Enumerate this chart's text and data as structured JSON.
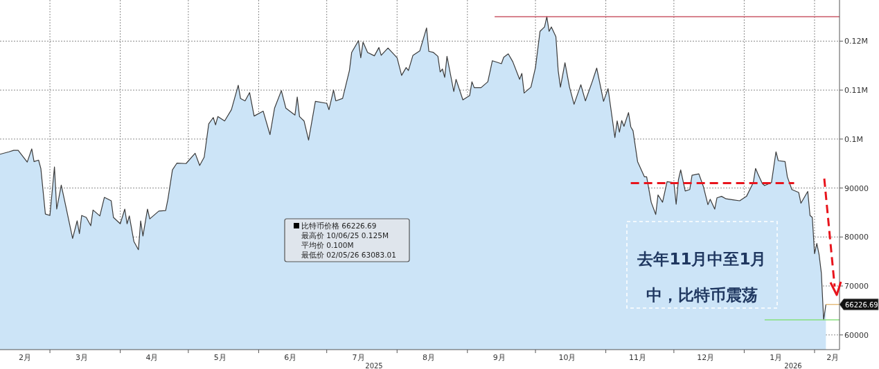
{
  "chart_data": {
    "type": "area",
    "x": [
      "2025-02-07",
      "2025-02-11",
      "2025-02-13",
      "2025-02-15",
      "2025-02-19",
      "2025-02-21",
      "2025-02-22",
      "2025-02-24",
      "2025-02-25",
      "2025-02-27",
      "2025-03-01",
      "2025-03-03",
      "2025-03-04",
      "2025-03-06",
      "2025-03-08",
      "2025-03-11",
      "2025-03-13",
      "2025-03-14",
      "2025-03-15",
      "2025-03-17",
      "2025-03-19",
      "2025-03-20",
      "2025-03-23",
      "2025-03-25",
      "2025-03-28",
      "2025-03-29",
      "2025-04-01",
      "2025-04-03",
      "2025-04-04",
      "2025-04-05",
      "2025-04-07",
      "2025-04-09",
      "2025-04-10",
      "2025-04-11",
      "2025-04-13",
      "2025-04-14",
      "2025-04-18",
      "2025-04-21",
      "2025-04-22",
      "2025-04-24",
      "2025-04-26",
      "2025-04-30",
      "2025-05-04",
      "2025-05-06",
      "2025-05-08",
      "2025-05-10",
      "2025-05-12",
      "2025-05-13",
      "2025-05-14",
      "2025-05-17",
      "2025-05-20",
      "2025-05-23",
      "2025-05-24",
      "2025-05-26",
      "2025-05-28",
      "2025-05-30",
      "2025-06-03",
      "2025-06-06",
      "2025-06-08",
      "2025-06-11",
      "2025-06-13",
      "2025-06-17",
      "2025-06-18",
      "2025-06-19",
      "2025-06-21",
      "2025-06-23",
      "2025-06-26",
      "2025-07-01",
      "2025-07-02",
      "2025-07-04",
      "2025-07-05",
      "2025-07-08",
      "2025-07-11",
      "2025-07-12",
      "2025-07-15",
      "2025-07-16",
      "2025-07-17",
      "2025-07-19",
      "2025-07-22",
      "2025-07-24",
      "2025-07-25",
      "2025-07-28",
      "2025-08-01",
      "2025-08-03",
      "2025-08-05",
      "2025-08-06",
      "2025-08-08",
      "2025-08-11",
      "2025-08-14",
      "2025-08-15",
      "2025-08-17",
      "2025-08-19",
      "2025-08-20",
      "2025-08-21",
      "2025-08-22",
      "2025-08-23",
      "2025-08-26",
      "2025-08-27",
      "2025-08-30",
      "2025-09-02",
      "2025-09-03",
      "2025-09-04",
      "2025-09-07",
      "2025-09-10",
      "2025-09-12",
      "2025-09-16",
      "2025-09-17",
      "2025-09-19",
      "2025-09-21",
      "2025-09-24",
      "2025-09-25",
      "2025-09-26",
      "2025-09-29",
      "2025-10-01",
      "2025-10-03",
      "2025-10-05",
      "2025-10-06",
      "2025-10-07",
      "2025-10-08",
      "2025-10-10",
      "2025-10-11",
      "2025-10-12",
      "2025-10-14",
      "2025-10-16",
      "2025-10-18",
      "2025-10-21",
      "2025-10-23",
      "2025-10-26",
      "2025-10-28",
      "2025-10-31",
      "2025-11-02",
      "2025-11-05",
      "2025-11-06",
      "2025-11-07",
      "2025-11-08",
      "2025-11-09",
      "2025-11-11",
      "2025-11-12",
      "2025-11-13",
      "2025-11-15",
      "2025-11-18",
      "2025-11-19",
      "2025-11-21",
      "2025-11-23",
      "2025-11-24",
      "2025-11-26",
      "2025-11-28",
      "2025-12-01",
      "2025-12-02",
      "2025-12-03",
      "2025-12-04",
      "2025-12-06",
      "2025-12-08",
      "2025-12-09",
      "2025-12-12",
      "2025-12-14",
      "2025-12-16",
      "2025-12-17",
      "2025-12-19",
      "2025-12-20",
      "2025-12-22",
      "2025-12-24",
      "2025-12-27",
      "2025-12-30",
      "2026-01-02",
      "2026-01-05",
      "2026-01-06",
      "2026-01-07",
      "2026-01-09",
      "2026-01-10",
      "2026-01-13",
      "2026-01-15",
      "2026-01-16",
      "2026-01-19",
      "2026-01-20",
      "2026-01-22",
      "2026-01-25",
      "2026-01-26",
      "2026-01-29",
      "2026-01-30",
      "2026-01-31",
      "2026-02-01",
      "2026-02-02",
      "2026-02-03",
      "2026-02-04",
      "2026-02-05",
      "2026-02-06"
    ],
    "series": [
      {
        "color": "#cce4f7",
        "values": [
          96900,
          97400,
          97700,
          97700,
          95300,
          98000,
          95400,
          95700,
          94000,
          84700,
          84400,
          94300,
          85700,
          90600,
          86300,
          79700,
          83300,
          80700,
          84400,
          84000,
          82300,
          85500,
          84300,
          88100,
          87400,
          84000,
          82700,
          85700,
          82700,
          84300,
          79100,
          77400,
          83300,
          80200,
          85700,
          83700,
          85300,
          85400,
          87700,
          93700,
          95100,
          95000,
          97100,
          94600,
          96300,
          103100,
          104400,
          102900,
          104600,
          103700,
          106000,
          111000,
          108300,
          107800,
          109500,
          104700,
          105700,
          100900,
          106300,
          109900,
          106300,
          104900,
          108600,
          104600,
          103700,
          99800,
          107700,
          107300,
          106000,
          110000,
          107800,
          108300,
          114000,
          117700,
          120100,
          116600,
          119800,
          117700,
          117000,
          118700,
          117100,
          118600,
          116600,
          113000,
          114600,
          114000,
          117100,
          118000,
          122700,
          117900,
          117700,
          116900,
          113700,
          114300,
          112600,
          116900,
          109700,
          112200,
          108000,
          108900,
          111700,
          110500,
          110500,
          111700,
          116000,
          115400,
          116700,
          117400,
          115800,
          112200,
          113400,
          109400,
          110600,
          114600,
          122000,
          122900,
          125000,
          122000,
          122900,
          120900,
          114000,
          110600,
          115600,
          110600,
          107100,
          111100,
          107800,
          111700,
          114500,
          107700,
          110300,
          100300,
          103700,
          101400,
          103800,
          102600,
          105400,
          102500,
          101700,
          95400,
          92300,
          92300,
          87100,
          84600,
          88600,
          87100,
          91300,
          91100,
          86700,
          91700,
          93700,
          89400,
          89700,
          92600,
          92900,
          90300,
          86600,
          87700,
          85700,
          88000,
          88300,
          87800,
          87600,
          87400,
          88300,
          91100,
          94000,
          92900,
          90900,
          90500,
          91100,
          97400,
          95600,
          95400,
          92300,
          89700,
          89100,
          86900,
          89300,
          84400,
          84000,
          76600,
          78700,
          76400,
          72600,
          63083.01,
          66226.69
        ]
      },
      {
        "type": "line",
        "color": "#c0394a",
        "x": [
          "2025-09-13",
          "2026-02-12"
        ],
        "values": [
          125000,
          125000
        ]
      },
      {
        "type": "line",
        "color": "#86e07c",
        "x": [
          "2026-01-10",
          "2026-02-12"
        ],
        "values": [
          63083.01,
          63083.01
        ]
      },
      {
        "type": "line",
        "color": "#e2b46a",
        "x": [
          "2026-02-06",
          "2026-02-12"
        ],
        "values": [
          66226.69,
          66226.69
        ],
        "value_labels": [
          null,
          "66226.69"
        ]
      },
      {
        "type": "line",
        "color": "#e8141c",
        "line_style": "dashed",
        "x": [
          "2025-11-12",
          "2026-01-23"
        ],
        "values": [
          91000,
          91000
        ]
      }
    ],
    "xlim": [
      "2025-02-07",
      "2026-02-12"
    ],
    "xticks": [
      {
        "value": "2025-02-18",
        "label": "2月"
      },
      {
        "value": "2025-03-01",
        "label": null
      },
      {
        "value": "2025-03-15",
        "label": "3月"
      },
      {
        "value": "2025-04-01",
        "label": null
      },
      {
        "value": "2025-04-15",
        "label": "4月"
      },
      {
        "value": "2025-05-01",
        "label": null
      },
      {
        "value": "2025-05-15",
        "label": "5月"
      },
      {
        "value": "2025-06-01",
        "label": null
      },
      {
        "value": "2025-06-15",
        "label": "6月"
      },
      {
        "value": "2025-07-01",
        "label": null
      },
      {
        "value": "2025-07-15",
        "label": "7月"
      },
      {
        "value": "2025-08-01",
        "label": null
      },
      {
        "value": "2025-08-15",
        "label": "8月"
      },
      {
        "value": "2025-09-01",
        "label": null
      },
      {
        "value": "2025-09-15",
        "label": "9月"
      },
      {
        "value": "2025-10-01",
        "label": null
      },
      {
        "value": "2025-10-15",
        "label": "10月"
      },
      {
        "value": "2025-11-01",
        "label": null
      },
      {
        "value": "2025-11-15",
        "label": "11月"
      },
      {
        "value": "2025-12-01",
        "label": null
      },
      {
        "value": "2025-12-15",
        "label": "12月"
      },
      {
        "value": "2026-01-01",
        "label": null
      },
      {
        "value": "2026-01-15",
        "label": "1月"
      },
      {
        "value": "2026-02-01",
        "label": null
      },
      {
        "value": "2026-02-09",
        "label": "2月"
      }
    ],
    "ylim": [
      57000,
      128400
    ],
    "yticks": [
      60000,
      70000,
      80000,
      90000,
      {
        "value": 100000,
        "label": "0.1M"
      },
      {
        "value": 110000,
        "label": "0.11M"
      },
      {
        "value": 120000,
        "label": "0.12M"
      }
    ],
    "grid": true,
    "annotations": [
      "去年11月中至1月中，比特币震荡",
      "比特币价格 66226.69",
      "最高价 10/06/25 0.125M",
      "平均价 0.100M",
      "最低价 02/05/26 63083.01",
      "2025",
      "2026"
    ]
  }
}
